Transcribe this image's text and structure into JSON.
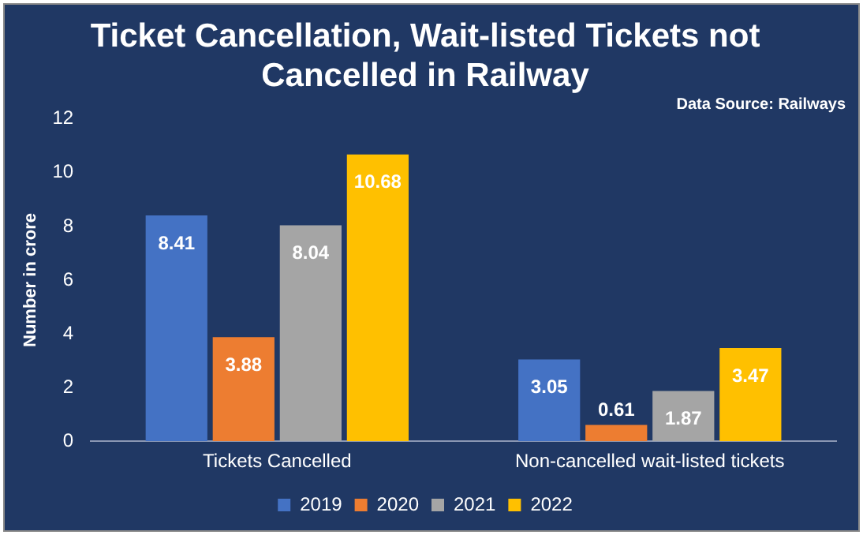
{
  "chart_data": {
    "type": "bar",
    "title": "Ticket Cancellation, Wait-listed Tickets not Cancelled in Railway",
    "ylabel": "Number in crore",
    "annotations": [
      "Data Source: Railways"
    ],
    "categories": [
      "Tickets Cancelled",
      "Non-cancelled wait-listed tickets"
    ],
    "series": [
      {
        "name": "2019",
        "color": "#4472c4",
        "values": [
          8.41,
          3.05
        ]
      },
      {
        "name": "2020",
        "color": "#ed7d31",
        "values": [
          3.88,
          0.61
        ]
      },
      {
        "name": "2021",
        "color": "#a5a5a5",
        "values": [
          8.04,
          1.87
        ]
      },
      {
        "name": "2022",
        "color": "#ffc000",
        "values": [
          10.68,
          3.47
        ]
      }
    ],
    "ylim": [
      0,
      12
    ],
    "yticks": [
      0,
      2,
      4,
      6,
      8,
      10,
      12
    ],
    "grid": false,
    "legend": "bottom",
    "data_labels": true
  }
}
